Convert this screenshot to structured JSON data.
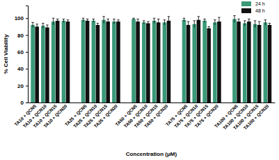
{
  "chart_data": {
    "type": "bar",
    "x_label": "Concentration (μM)",
    "y_label": "% Cell Viability",
    "categories": [
      "TA10 + QCN5",
      "TA10 + QCN10",
      "TA10 + QCN15",
      "TA10 + QCN20",
      "TA25 + QCN5",
      "TA25 + QCN10",
      "TA25 + QCN15",
      "TA25 + QCN20",
      "TA50 + QCN5",
      "TA50 + QCN10",
      "TA50 + QCN15",
      "TA50 + QCN20",
      "TA75 + QCN5",
      "TA75 + QCN10",
      "TA75 + QCN15",
      "TA75 + QCN20",
      "TA100 + QCN5",
      "TA100 + QCN10",
      "TA100 + QCN15",
      "TA100 + QCN20"
    ],
    "series": [
      {
        "name": "24 h",
        "color": "#3a9a78",
        "values": [
          92,
          91,
          96,
          97,
          98,
          97,
          98,
          96,
          99,
          95,
          97,
          95,
          98,
          93,
          97,
          95,
          99,
          94,
          93,
          95
        ],
        "errors": [
          3,
          3,
          4,
          2,
          2,
          2,
          4,
          3,
          1,
          2,
          3,
          3,
          2,
          4,
          2,
          3,
          4,
          3,
          4,
          3
        ]
      },
      {
        "name": "48 h",
        "color": "#111111",
        "values": [
          90,
          89,
          97,
          96,
          97,
          92,
          96,
          96,
          96,
          94,
          95,
          97,
          92,
          98,
          88,
          96,
          96,
          96,
          92,
          92
        ],
        "errors": [
          3,
          3,
          2,
          2,
          2,
          2,
          3,
          2,
          3,
          2,
          4,
          5,
          4,
          4,
          2,
          5,
          3,
          3,
          4,
          2
        ]
      }
    ],
    "ylim": [
      0,
      115
    ],
    "yticks": [
      0,
      20,
      40,
      60,
      80,
      100
    ],
    "legend": "upper right",
    "grid": false
  }
}
